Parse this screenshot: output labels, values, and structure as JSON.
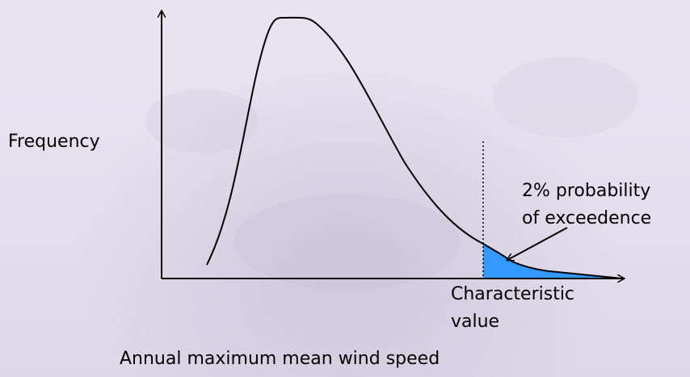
{
  "diagram": {
    "y_axis_label": "Frequency",
    "x_axis_label": "Annual maximum mean wind speed",
    "characteristic_value_label": [
      "Characteristic",
      "value"
    ],
    "exceedance_label": [
      "2% probability",
      "of exceedence"
    ],
    "colors": {
      "curve": "#000000",
      "shaded_tail": "#3399ff",
      "axis": "#000000"
    }
  }
}
